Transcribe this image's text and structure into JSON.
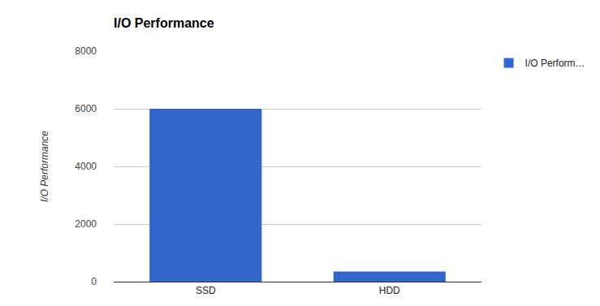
{
  "chart_data": {
    "type": "bar",
    "title": "I/O Performance",
    "categories": [
      "SSD",
      "HDD"
    ],
    "series": [
      {
        "name": "I/O Perform…",
        "color": "#3366cc",
        "values": [
          6000,
          350
        ]
      }
    ],
    "y_label": "I/O Performance",
    "ylim": [
      0,
      8000
    ],
    "yticks": [
      0,
      2000,
      4000,
      6000,
      8000
    ],
    "grid": true,
    "legend": "top-right"
  }
}
